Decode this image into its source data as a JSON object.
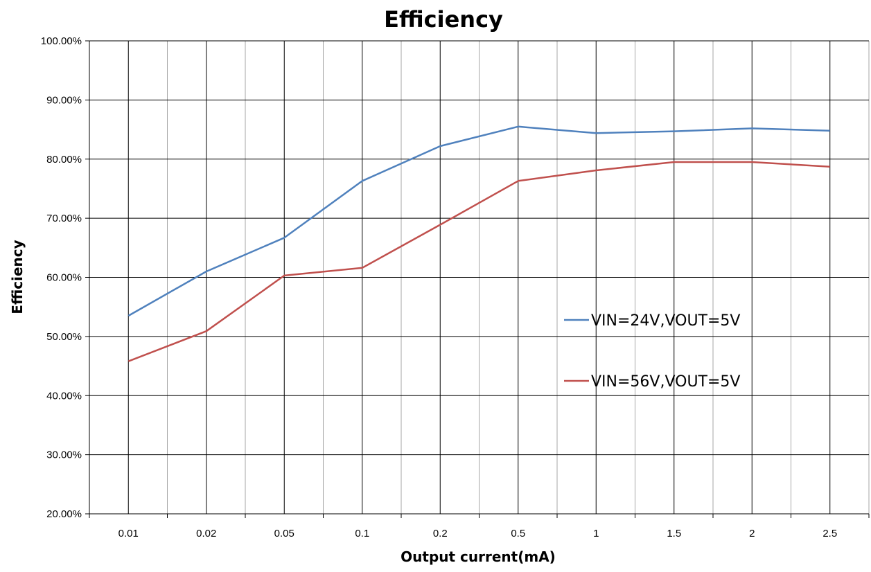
{
  "chart_data": {
    "type": "line",
    "title": "Efficiency",
    "xlabel": "Output current(mA)",
    "ylabel": "Efficiency",
    "categories": [
      "0.01",
      "0.02",
      "0.05",
      "0.1",
      "0.2",
      "0.5",
      "1",
      "1.5",
      "2",
      "2.5"
    ],
    "ylim": [
      0.2,
      1.0
    ],
    "y_ticks": [
      "20.00%",
      "30.00%",
      "40.00%",
      "50.00%",
      "60.00%",
      "70.00%",
      "80.00%",
      "90.00%",
      "100.00%"
    ],
    "grid": true,
    "legend_position": "right",
    "series": [
      {
        "name": "VIN=24V,VOUT=5V",
        "color": "#4f81bd",
        "values": [
          0.535,
          0.61,
          0.667,
          0.763,
          0.822,
          0.855,
          0.844,
          0.847,
          0.852,
          0.848
        ]
      },
      {
        "name": "VIN=56V,VOUT=5V",
        "color": "#c0504d",
        "values": [
          0.458,
          0.509,
          0.603,
          0.616,
          0.689,
          0.763,
          0.781,
          0.795,
          0.795,
          0.787
        ]
      }
    ]
  }
}
